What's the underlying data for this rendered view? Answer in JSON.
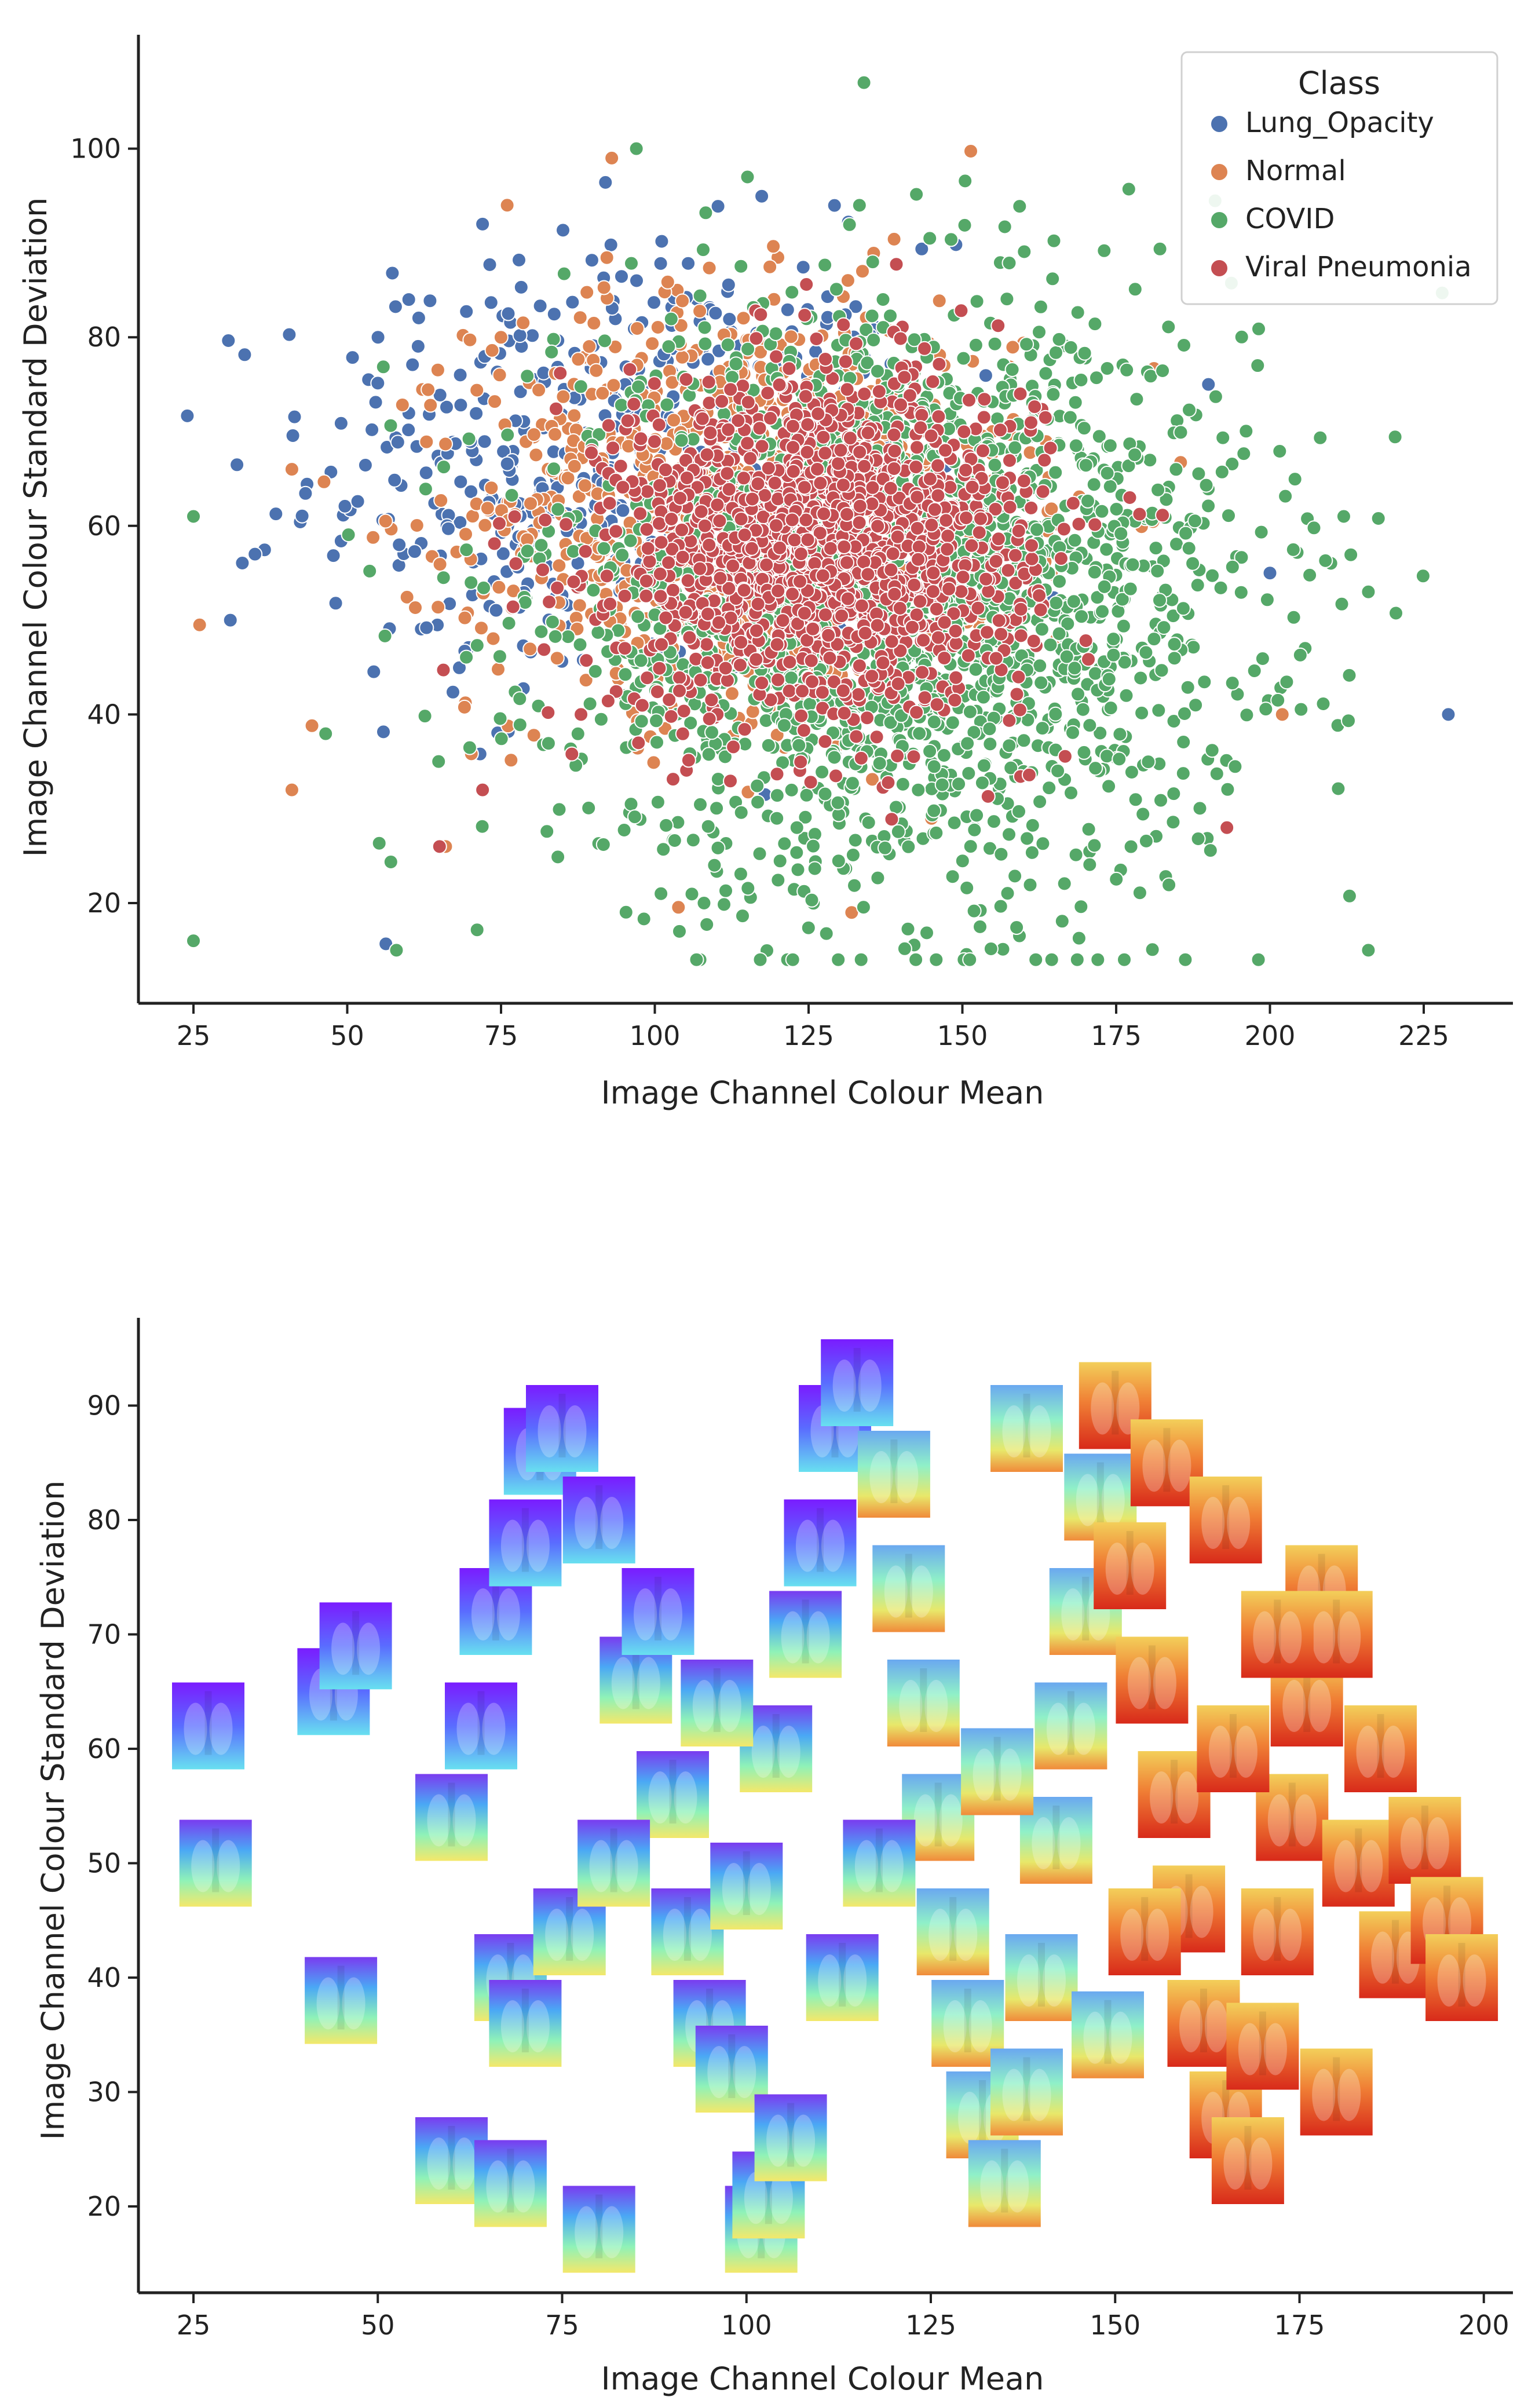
{
  "chart_data": [
    {
      "type": "scatter",
      "title": "",
      "xlabel": "Image Channel Colour Mean",
      "ylabel": "Image Channel Colour Standard Deviation",
      "xlim": [
        18,
        240
      ],
      "ylim": [
        10,
        112
      ],
      "xticks": [
        "25",
        "50",
        "75",
        "100",
        "125",
        "150",
        "175",
        "200",
        "225"
      ],
      "yticks": [
        "20",
        "40",
        "60",
        "80",
        "100"
      ],
      "legend": {
        "title": "Class",
        "position": "top-right",
        "entries": [
          "Lung_Opacity",
          "Normal",
          "COVID",
          "Viral Pneumonia"
        ]
      },
      "series": [
        {
          "name": "Lung_Opacity",
          "color": "#4c72b0",
          "count": 500,
          "center": [
            95,
            66
          ],
          "spread": [
            25,
            12
          ],
          "extremes": [
            [
              229,
              40
            ],
            [
              31,
              50
            ],
            [
              35,
              57
            ],
            [
              200,
              55
            ],
            [
              190,
              75
            ],
            [
              55,
              80
            ],
            [
              60,
              84
            ],
            [
              72,
              92
            ]
          ]
        },
        {
          "name": "Normal",
          "color": "#dd8452",
          "count": 900,
          "center": [
            115,
            62
          ],
          "spread": [
            22,
            11
          ],
          "extremes": [
            [
              26,
              49.5
            ],
            [
              41,
              66
            ],
            [
              41,
              32
            ],
            [
              76,
              94
            ],
            [
              93,
              99
            ],
            [
              202,
              40
            ],
            [
              132,
              19
            ],
            [
              66,
              26
            ]
          ]
        },
        {
          "name": "COVID",
          "color": "#55a868",
          "count": 2000,
          "center": [
            140,
            52
          ],
          "spread": [
            28,
            15
          ],
          "extremes": [
            [
              25,
              16
            ],
            [
              25,
              61
            ],
            [
              216,
              15
            ],
            [
              212,
              61
            ],
            [
              216,
              53
            ],
            [
              134,
              107
            ],
            [
              97,
              100
            ],
            [
              198,
              77
            ],
            [
              58,
              15
            ],
            [
              104,
              17
            ],
            [
              108,
              20
            ],
            [
              101,
              21
            ]
          ]
        },
        {
          "name": "Viral Pneumonia",
          "color": "#c44e52",
          "count": 1400,
          "center": [
            127,
            58
          ],
          "spread": [
            17,
            9
          ],
          "extremes": [
            [
              193,
              28
            ],
            [
              65,
              26
            ],
            [
              88,
              40
            ],
            [
              72,
              32
            ]
          ]
        }
      ]
    },
    {
      "type": "scatter",
      "title": "",
      "xlabel": "Image Channel Colour Mean",
      "ylabel": "Image Channel Colour Standard Deviation",
      "xlim": [
        17,
        203
      ],
      "ylim": [
        13,
        98
      ],
      "xticks": [
        "25",
        "50",
        "75",
        "100",
        "125",
        "150",
        "175",
        "200"
      ],
      "yticks": [
        "20",
        "30",
        "40",
        "50",
        "60",
        "70",
        "80",
        "90"
      ],
      "marker": "image-thumbnails",
      "thumbnails": [
        [
          27,
          62
        ],
        [
          28,
          50
        ],
        [
          45,
          38
        ],
        [
          44,
          65
        ],
        [
          47,
          69
        ],
        [
          60,
          24
        ],
        [
          68,
          22
        ],
        [
          80,
          18
        ],
        [
          102,
          18
        ],
        [
          103,
          21
        ],
        [
          60,
          54
        ],
        [
          64,
          62
        ],
        [
          66,
          72
        ],
        [
          70,
          78
        ],
        [
          72,
          86
        ],
        [
          75,
          88
        ],
        [
          80,
          80
        ],
        [
          85,
          66
        ],
        [
          90,
          56
        ],
        [
          92,
          44
        ],
        [
          95,
          36
        ],
        [
          98,
          32
        ],
        [
          100,
          48
        ],
        [
          104,
          60
        ],
        [
          108,
          70
        ],
        [
          110,
          78
        ],
        [
          112,
          88
        ],
        [
          115,
          92
        ],
        [
          120,
          84
        ],
        [
          122,
          74
        ],
        [
          124,
          64
        ],
        [
          126,
          54
        ],
        [
          128,
          44
        ],
        [
          130,
          36
        ],
        [
          132,
          28
        ],
        [
          135,
          22
        ],
        [
          138,
          30
        ],
        [
          140,
          40
        ],
        [
          142,
          52
        ],
        [
          144,
          62
        ],
        [
          146,
          72
        ],
        [
          148,
          82
        ],
        [
          150,
          90
        ],
        [
          152,
          76
        ],
        [
          155,
          66
        ],
        [
          158,
          56
        ],
        [
          160,
          46
        ],
        [
          162,
          36
        ],
        [
          165,
          28
        ],
        [
          168,
          24
        ],
        [
          170,
          34
        ],
        [
          172,
          44
        ],
        [
          174,
          54
        ],
        [
          176,
          64
        ],
        [
          178,
          74
        ],
        [
          180,
          70
        ],
        [
          183,
          50
        ],
        [
          186,
          60
        ],
        [
          188,
          42
        ],
        [
          192,
          52
        ],
        [
          195,
          45
        ],
        [
          197,
          40
        ],
        [
          138,
          88
        ],
        [
          157,
          85
        ],
        [
          165,
          80
        ],
        [
          68,
          40
        ],
        [
          70,
          36
        ],
        [
          76,
          44
        ],
        [
          82,
          50
        ],
        [
          88,
          72
        ],
        [
          96,
          64
        ],
        [
          106,
          26
        ],
        [
          113,
          40
        ],
        [
          118,
          50
        ],
        [
          134,
          58
        ],
        [
          149,
          35
        ],
        [
          154,
          44
        ],
        [
          166,
          60
        ],
        [
          172,
          70
        ],
        [
          180,
          30
        ]
      ]
    }
  ]
}
